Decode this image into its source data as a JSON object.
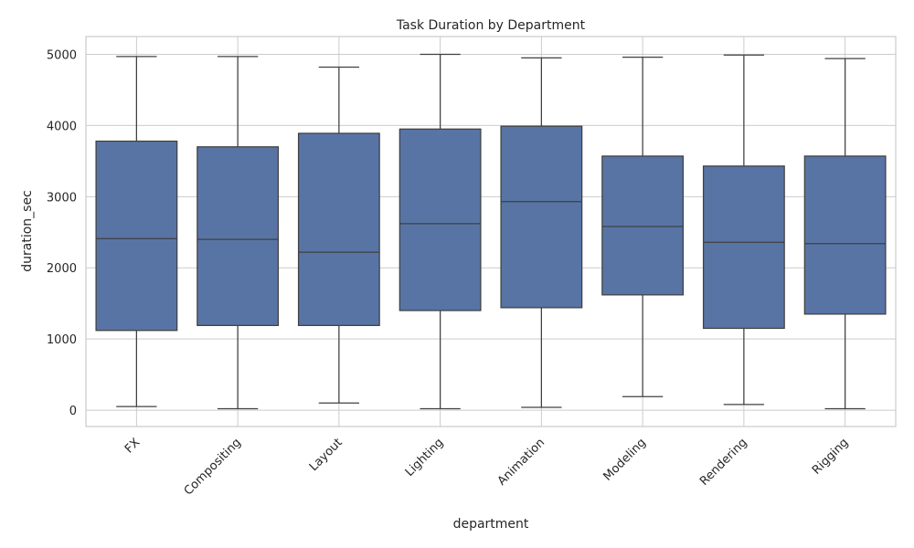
{
  "chart_data": {
    "type": "box",
    "title": "Task Duration by Department",
    "xlabel": "department",
    "ylabel": "duration_sec",
    "ylim": [
      -230,
      5250
    ],
    "yticks": [
      0,
      1000,
      2000,
      3000,
      4000,
      5000
    ],
    "grid": true,
    "box_color": "#5874a5",
    "edge_color": "#404040",
    "categories": [
      "FX",
      "Compositing",
      "Layout",
      "Lighting",
      "Animation",
      "Modeling",
      "Rendering",
      "Rigging"
    ],
    "boxes": [
      {
        "category": "FX",
        "min": 50,
        "q1": 1120,
        "median": 2410,
        "q3": 3780,
        "max": 4970
      },
      {
        "category": "Compositing",
        "min": 20,
        "q1": 1190,
        "median": 2400,
        "q3": 3700,
        "max": 4970
      },
      {
        "category": "Layout",
        "min": 100,
        "q1": 1190,
        "median": 2220,
        "q3": 3890,
        "max": 4820
      },
      {
        "category": "Lighting",
        "min": 20,
        "q1": 1400,
        "median": 2620,
        "q3": 3950,
        "max": 5000
      },
      {
        "category": "Animation",
        "min": 40,
        "q1": 1440,
        "median": 2930,
        "q3": 3990,
        "max": 4950
      },
      {
        "category": "Modeling",
        "min": 190,
        "q1": 1620,
        "median": 2580,
        "q3": 3570,
        "max": 4960
      },
      {
        "category": "Rendering",
        "min": 80,
        "q1": 1150,
        "median": 2360,
        "q3": 3430,
        "max": 4990
      },
      {
        "category": "Rigging",
        "min": 20,
        "q1": 1350,
        "median": 2340,
        "q3": 3570,
        "max": 4940
      }
    ]
  }
}
